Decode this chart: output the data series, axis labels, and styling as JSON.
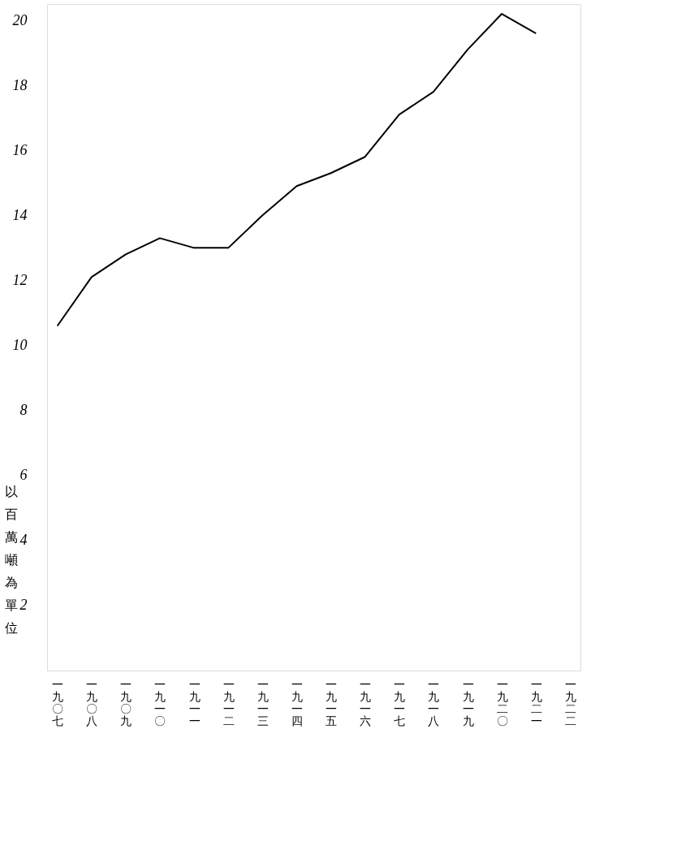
{
  "chart_data": {
    "type": "line",
    "ylabel": "以百萬噸為單位",
    "categories": [
      "一九〇七",
      "一九〇八",
      "一九〇九",
      "一九一〇",
      "一九一一",
      "一九一二",
      "一九一三",
      "一九一四",
      "一九一五",
      "一九一六",
      "一九一七",
      "一九一八",
      "一九一九",
      "一九二〇",
      "一九二一",
      "一九二二"
    ],
    "series": [
      {
        "color": "#000000",
        "values": [
          10.6,
          12.1,
          12.8,
          13.3,
          13.0,
          13.0,
          14.0,
          14.9,
          15.3,
          15.8,
          17.1,
          17.8,
          19.1,
          20.2,
          19.6,
          null
        ]
      }
    ],
    "ylim": [
      0,
      20.5
    ],
    "yticks": [
      2,
      4,
      6,
      8,
      10,
      12,
      14,
      16,
      18,
      20
    ],
    "grid": false,
    "legend": false,
    "marker": "none",
    "line_style": "solid"
  }
}
